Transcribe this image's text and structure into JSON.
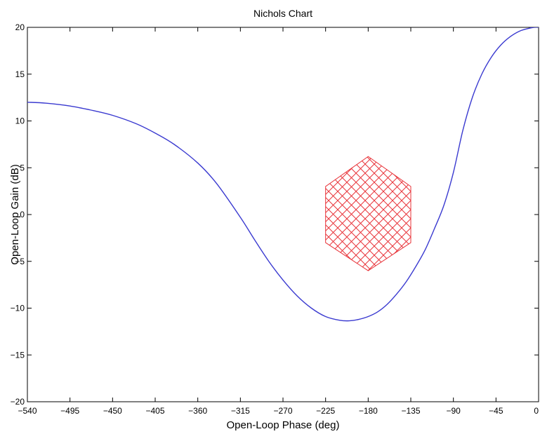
{
  "chart_data": {
    "type": "line",
    "title": "Nichols Chart",
    "xlabel": "Open-Loop Phase (deg)",
    "ylabel": "Open-Loop Gain (dB)",
    "xlim": [
      -540,
      0
    ],
    "ylim": [
      -20,
      20
    ],
    "xticks": [
      -540,
      -495,
      -450,
      -405,
      -360,
      -315,
      -270,
      -225,
      -180,
      -135,
      -90,
      -45,
      0
    ],
    "yticks": [
      -20,
      -15,
      -10,
      -5,
      0,
      5,
      10,
      15,
      20
    ],
    "grid": false,
    "series": [
      {
        "color": "#3a3ad0",
        "x": [
          -540,
          -520,
          -495,
          -470,
          -450,
          -425,
          -405,
          -385,
          -360,
          -340,
          -315,
          -300,
          -285,
          -270,
          -255,
          -240,
          -225,
          -210,
          -200,
          -190,
          -180,
          -170,
          -160,
          -150,
          -140,
          -130,
          -120,
          -110,
          -100,
          -90,
          -80,
          -70,
          -60,
          -50,
          -40,
          -30,
          -20,
          -10,
          -5,
          0
        ],
        "y": [
          12.0,
          11.9,
          11.6,
          11.1,
          10.6,
          9.7,
          8.7,
          7.5,
          5.5,
          3.3,
          -0.3,
          -2.7,
          -5.0,
          -7.0,
          -8.7,
          -10.0,
          -10.9,
          -11.3,
          -11.35,
          -11.2,
          -10.9,
          -10.4,
          -9.6,
          -8.5,
          -7.2,
          -5.6,
          -3.8,
          -1.5,
          1.0,
          4.5,
          9.0,
          12.5,
          15.0,
          16.8,
          18.1,
          19.0,
          19.6,
          19.9,
          20.0,
          20.0
        ]
      }
    ],
    "region": {
      "color": "#e8343a",
      "pattern": "crosshatch",
      "x": [
        -225,
        -180,
        -135,
        -135,
        -180,
        -225
      ],
      "y": [
        3,
        6.2,
        3,
        -3,
        -6,
        -3
      ]
    }
  }
}
